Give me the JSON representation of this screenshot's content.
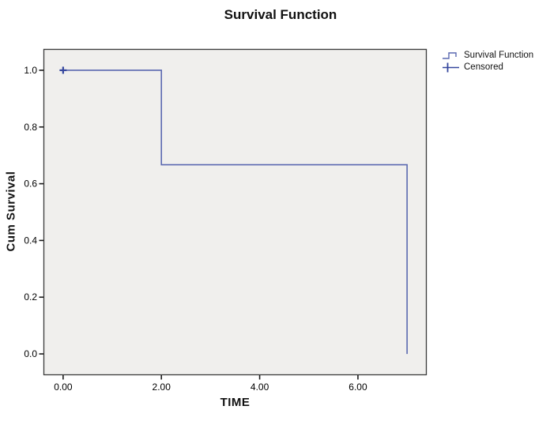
{
  "chart_data": {
    "type": "line",
    "subtype": "kaplan-meier-step-survival",
    "title": "Survival Function",
    "xlabel": "TIME",
    "ylabel": "Cum Survival",
    "xlim": [
      -0.4,
      7.4
    ],
    "ylim": [
      -0.075,
      1.075
    ],
    "grid": false,
    "plot_bg": "#f0efed",
    "frame_color": "#3a3a3a",
    "tick_color": "#1a1a1a",
    "text_color": "#000000",
    "x_ticks": [
      {
        "value": 0,
        "label": "0.00"
      },
      {
        "value": 2,
        "label": "2.00"
      },
      {
        "value": 4,
        "label": "4.00"
      },
      {
        "value": 6,
        "label": "6.00"
      }
    ],
    "y_ticks": [
      {
        "value": 1.0,
        "label": "1.0"
      },
      {
        "value": 0.8,
        "label": "0.8"
      },
      {
        "value": 0.6,
        "label": "0.6"
      },
      {
        "value": 0.4,
        "label": "0.4"
      },
      {
        "value": 0.2,
        "label": "0.2"
      },
      {
        "value": 0.0,
        "label": "0.0"
      }
    ],
    "series": [
      {
        "name": "Survival Function",
        "color": "#5a68b0",
        "step_points": [
          [
            0,
            1.0
          ],
          [
            2,
            1.0
          ],
          [
            2,
            0.667
          ],
          [
            7,
            0.667
          ],
          [
            7,
            0.0
          ]
        ]
      },
      {
        "name": "Censored",
        "color": "#35479e",
        "marker": "plus",
        "points": [
          [
            0,
            1.0
          ]
        ]
      }
    ],
    "legend_position": "top-right-outside",
    "legend": [
      {
        "name": "Survival Function",
        "glyph": "step",
        "color": "#5a68b0"
      },
      {
        "name": "Censored",
        "glyph": "plus",
        "color": "#35479e"
      }
    ]
  }
}
